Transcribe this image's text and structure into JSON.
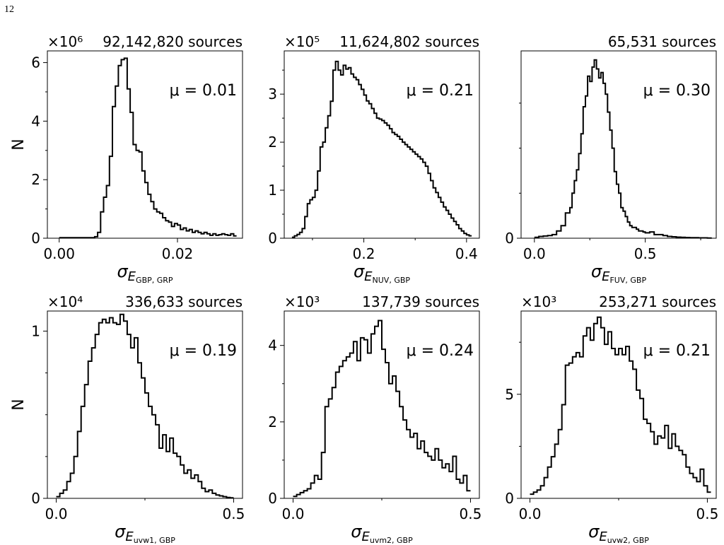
{
  "page_number": "12",
  "chart_data": [
    {
      "type": "histogram",
      "title": "92,142,820 sources",
      "multiplier": "×10⁶",
      "mu_label": "μ = 0.01",
      "ylabel": "N",
      "xlabel": "σ_E(G_BP, G_RP)",
      "xlim": [
        -0.002,
        0.031
      ],
      "ylim": [
        0,
        6.4
      ],
      "xticks": [
        {
          "v": 0.0,
          "label": "0.00"
        },
        {
          "v": 0.02,
          "label": "0.02"
        }
      ],
      "yticks": [
        {
          "v": 0,
          "label": "0"
        },
        {
          "v": 2,
          "label": "2"
        },
        {
          "v": 4,
          "label": "4"
        },
        {
          "v": 6,
          "label": "6"
        }
      ],
      "yminor": [
        1,
        3,
        5
      ],
      "xminor": [],
      "bins": [
        0.0,
        0.002,
        0.004,
        0.006,
        0.0065,
        0.007,
        0.0075,
        0.008,
        0.0085,
        0.009,
        0.0095,
        0.01,
        0.0105,
        0.011,
        0.0115,
        0.012,
        0.0125,
        0.013,
        0.0135,
        0.014,
        0.0145,
        0.015,
        0.0155,
        0.016,
        0.0165,
        0.017,
        0.0175,
        0.018,
        0.0185,
        0.019,
        0.0195,
        0.02,
        0.0205,
        0.021,
        0.0215,
        0.022,
        0.0225,
        0.023,
        0.0235,
        0.024,
        0.0245,
        0.025,
        0.0255,
        0.026,
        0.0265,
        0.027,
        0.0275,
        0.028,
        0.0285,
        0.029,
        0.0295,
        0.03
      ],
      "counts": [
        0.02,
        0.02,
        0.02,
        0.05,
        0.2,
        0.9,
        1.4,
        1.8,
        2.8,
        4.5,
        5.2,
        5.9,
        6.1,
        6.15,
        5.1,
        4.3,
        3.2,
        3.0,
        2.95,
        2.3,
        1.9,
        1.5,
        1.25,
        1.0,
        0.9,
        0.85,
        0.7,
        0.6,
        0.55,
        0.4,
        0.5,
        0.45,
        0.3,
        0.35,
        0.25,
        0.3,
        0.2,
        0.25,
        0.2,
        0.15,
        0.2,
        0.15,
        0.1,
        0.15,
        0.1,
        0.12,
        0.15,
        0.12,
        0.1,
        0.15,
        0.08
      ]
    },
    {
      "type": "histogram",
      "title": "11,624,802 sources",
      "multiplier": "×10⁵",
      "mu_label": "μ = 0.21",
      "ylabel": "",
      "xlabel": "σ_E(NUV, G_BP)",
      "xlim": [
        0.045,
        0.425
      ],
      "ylim": [
        0,
        3.9
      ],
      "xticks": [
        {
          "v": 0.2,
          "label": "0.2"
        },
        {
          "v": 0.4,
          "label": "0.4"
        }
      ],
      "yticks": [
        {
          "v": 0,
          "label": "0"
        },
        {
          "v": 1,
          "label": "1"
        },
        {
          "v": 2,
          "label": "2"
        },
        {
          "v": 3,
          "label": "3"
        }
      ],
      "yminor": [
        0.5,
        1.5,
        2.5,
        3.5
      ],
      "xminor": [
        0.1,
        0.3
      ],
      "bins": [
        0.06,
        0.065,
        0.07,
        0.075,
        0.08,
        0.085,
        0.09,
        0.095,
        0.1,
        0.105,
        0.11,
        0.115,
        0.12,
        0.125,
        0.13,
        0.135,
        0.14,
        0.145,
        0.15,
        0.155,
        0.16,
        0.165,
        0.17,
        0.175,
        0.18,
        0.185,
        0.19,
        0.195,
        0.2,
        0.205,
        0.21,
        0.215,
        0.22,
        0.225,
        0.23,
        0.235,
        0.24,
        0.245,
        0.25,
        0.255,
        0.26,
        0.265,
        0.27,
        0.275,
        0.28,
        0.285,
        0.29,
        0.295,
        0.3,
        0.305,
        0.31,
        0.315,
        0.32,
        0.325,
        0.33,
        0.335,
        0.34,
        0.345,
        0.35,
        0.355,
        0.36,
        0.365,
        0.37,
        0.375,
        0.38,
        0.385,
        0.39,
        0.395,
        0.4,
        0.405
      ],
      "counts": [
        0.02,
        0.05,
        0.08,
        0.12,
        0.2,
        0.45,
        0.72,
        0.8,
        0.85,
        1.0,
        1.4,
        1.9,
        2.0,
        2.3,
        2.55,
        2.85,
        3.5,
        3.68,
        3.5,
        3.4,
        3.6,
        3.52,
        3.55,
        3.42,
        3.35,
        3.3,
        3.2,
        3.1,
        2.98,
        2.86,
        2.8,
        2.7,
        2.6,
        2.5,
        2.48,
        2.45,
        2.4,
        2.35,
        2.28,
        2.2,
        2.16,
        2.12,
        2.06,
        2.0,
        1.95,
        1.9,
        1.85,
        1.8,
        1.75,
        1.7,
        1.65,
        1.58,
        1.5,
        1.35,
        1.2,
        1.05,
        0.95,
        0.85,
        0.75,
        0.65,
        0.58,
        0.5,
        0.42,
        0.35,
        0.28,
        0.2,
        0.15,
        0.1,
        0.07,
        0.05
      ]
    },
    {
      "type": "histogram",
      "title": "65,531 sources",
      "multiplier": "",
      "mu_label": "μ = 0.30",
      "ylabel": "",
      "xlabel": "σ_E(FUV, G_BP)",
      "xlim": [
        -0.06,
        0.82
      ],
      "ylim": [
        0,
        1.04
      ],
      "xticks": [
        {
          "v": 0.0,
          "label": "0.0"
        },
        {
          "v": 0.5,
          "label": "0.5"
        }
      ],
      "yticks": [
        {
          "v": 0,
          "label": "0"
        }
      ],
      "yminor": [
        0.25,
        0.5,
        0.75
      ],
      "xminor": [
        0.25,
        0.75
      ],
      "bins": [
        0.0,
        0.02,
        0.04,
        0.06,
        0.08,
        0.1,
        0.12,
        0.14,
        0.16,
        0.17,
        0.18,
        0.19,
        0.2,
        0.21,
        0.22,
        0.23,
        0.24,
        0.25,
        0.26,
        0.27,
        0.28,
        0.29,
        0.3,
        0.31,
        0.32,
        0.33,
        0.34,
        0.35,
        0.36,
        0.37,
        0.38,
        0.39,
        0.4,
        0.41,
        0.42,
        0.43,
        0.44,
        0.45,
        0.46,
        0.47,
        0.48,
        0.49,
        0.5,
        0.52,
        0.54,
        0.56,
        0.58,
        0.6,
        0.62,
        0.64,
        0.66,
        0.68,
        0.7,
        0.72,
        0.74,
        0.76,
        0.78
      ],
      "counts": [
        0.005,
        0.01,
        0.012,
        0.015,
        0.02,
        0.04,
        0.07,
        0.14,
        0.17,
        0.25,
        0.32,
        0.38,
        0.47,
        0.58,
        0.73,
        0.79,
        0.9,
        0.87,
        0.95,
        0.99,
        0.94,
        0.89,
        0.92,
        0.86,
        0.8,
        0.7,
        0.6,
        0.5,
        0.37,
        0.3,
        0.25,
        0.17,
        0.15,
        0.12,
        0.09,
        0.07,
        0.06,
        0.06,
        0.05,
        0.04,
        0.04,
        0.035,
        0.03,
        0.035,
        0.02,
        0.02,
        0.015,
        0.01,
        0.008,
        0.006,
        0.005,
        0.004,
        0.003,
        0.003,
        0.002,
        0.002,
        0.001
      ]
    },
    {
      "type": "histogram",
      "title": "336,633 sources",
      "multiplier": "×10⁴",
      "mu_label": "μ = 0.19",
      "ylabel": "N",
      "xlabel": "σ_E(uvw1, G_BP)",
      "xlim": [
        -0.025,
        0.525
      ],
      "ylim": [
        0,
        1.12
      ],
      "xticks": [
        {
          "v": 0.0,
          "label": "0.0"
        },
        {
          "v": 0.5,
          "label": "0.5"
        }
      ],
      "yticks": [
        {
          "v": 0,
          "label": "0"
        },
        {
          "v": 1,
          "label": "1"
        }
      ],
      "yminor": [
        0.25,
        0.5,
        0.75
      ],
      "xminor": [
        0.25
      ],
      "bins": [
        0.0,
        0.01,
        0.02,
        0.03,
        0.04,
        0.05,
        0.06,
        0.07,
        0.08,
        0.09,
        0.1,
        0.11,
        0.12,
        0.13,
        0.14,
        0.15,
        0.16,
        0.17,
        0.18,
        0.19,
        0.2,
        0.21,
        0.22,
        0.23,
        0.24,
        0.25,
        0.26,
        0.27,
        0.28,
        0.29,
        0.3,
        0.31,
        0.32,
        0.33,
        0.34,
        0.35,
        0.36,
        0.37,
        0.38,
        0.39,
        0.4,
        0.41,
        0.42,
        0.43,
        0.44,
        0.45,
        0.46,
        0.47,
        0.48,
        0.49
      ],
      "counts": [
        0.01,
        0.03,
        0.05,
        0.1,
        0.15,
        0.25,
        0.4,
        0.55,
        0.68,
        0.82,
        0.9,
        0.98,
        1.05,
        1.07,
        1.05,
        1.08,
        1.05,
        1.04,
        1.1,
        1.06,
        0.98,
        0.9,
        0.96,
        0.81,
        0.72,
        0.63,
        0.55,
        0.5,
        0.44,
        0.3,
        0.38,
        0.28,
        0.36,
        0.27,
        0.25,
        0.2,
        0.15,
        0.17,
        0.12,
        0.14,
        0.1,
        0.06,
        0.04,
        0.05,
        0.03,
        0.02,
        0.015,
        0.01,
        0.005,
        0.003
      ]
    },
    {
      "type": "histogram",
      "title": "137,739 sources",
      "multiplier": "×10³",
      "mu_label": "μ = 0.24",
      "ylabel": "",
      "xlabel": "σ_E(uvm2, G_BP)",
      "xlim": [
        -0.025,
        0.525
      ],
      "ylim": [
        0,
        4.9
      ],
      "xticks": [
        {
          "v": 0.0,
          "label": "0.0"
        },
        {
          "v": 0.5,
          "label": "0.5"
        }
      ],
      "yticks": [
        {
          "v": 0,
          "label": "0"
        },
        {
          "v": 2,
          "label": "2"
        },
        {
          "v": 4,
          "label": "4"
        }
      ],
      "yminor": [
        1,
        3
      ],
      "xminor": [
        0.25
      ],
      "bins": [
        0.0,
        0.01,
        0.02,
        0.03,
        0.04,
        0.05,
        0.06,
        0.07,
        0.08,
        0.09,
        0.1,
        0.11,
        0.12,
        0.13,
        0.14,
        0.15,
        0.16,
        0.17,
        0.18,
        0.19,
        0.2,
        0.21,
        0.22,
        0.23,
        0.24,
        0.25,
        0.26,
        0.27,
        0.28,
        0.29,
        0.3,
        0.31,
        0.32,
        0.33,
        0.34,
        0.35,
        0.36,
        0.37,
        0.38,
        0.39,
        0.4,
        0.41,
        0.42,
        0.43,
        0.44,
        0.45,
        0.46,
        0.47,
        0.48,
        0.49
      ],
      "counts": [
        0.05,
        0.1,
        0.15,
        0.2,
        0.25,
        0.4,
        0.6,
        0.5,
        1.2,
        2.4,
        2.6,
        2.9,
        3.3,
        3.45,
        3.6,
        3.7,
        3.8,
        4.1,
        3.6,
        4.2,
        4.15,
        3.8,
        4.3,
        4.5,
        4.65,
        3.9,
        3.55,
        3.0,
        3.2,
        2.8,
        2.4,
        2.05,
        1.8,
        1.6,
        1.7,
        1.3,
        1.5,
        1.2,
        1.1,
        1.0,
        1.3,
        1.0,
        0.8,
        0.9,
        0.7,
        1.1,
        0.5,
        0.4,
        0.6,
        0.2
      ]
    },
    {
      "type": "histogram",
      "title": "253,271 sources",
      "multiplier": "×10³",
      "mu_label": "μ = 0.21",
      "ylabel": "",
      "xlabel": "σ_E(uvw2, G_BP)",
      "xlim": [
        -0.025,
        0.525
      ],
      "ylim": [
        0,
        9.0
      ],
      "xticks": [
        {
          "v": 0.0,
          "label": "0.0"
        },
        {
          "v": 0.5,
          "label": "0.5"
        }
      ],
      "yticks": [
        {
          "v": 0,
          "label": "0"
        },
        {
          "v": 5,
          "label": "5"
        }
      ],
      "yminor": [
        2.5,
        7.5
      ],
      "xminor": [
        0.25
      ],
      "bins": [
        0.0,
        0.01,
        0.02,
        0.03,
        0.04,
        0.05,
        0.06,
        0.07,
        0.08,
        0.09,
        0.1,
        0.11,
        0.12,
        0.13,
        0.14,
        0.15,
        0.16,
        0.17,
        0.18,
        0.19,
        0.2,
        0.21,
        0.22,
        0.23,
        0.24,
        0.25,
        0.26,
        0.27,
        0.28,
        0.29,
        0.3,
        0.31,
        0.32,
        0.33,
        0.34,
        0.35,
        0.36,
        0.37,
        0.38,
        0.39,
        0.4,
        0.41,
        0.42,
        0.43,
        0.44,
        0.45,
        0.46,
        0.47,
        0.48,
        0.49,
        0.5
      ],
      "counts": [
        0.2,
        0.3,
        0.4,
        0.6,
        1.0,
        1.5,
        2.0,
        2.6,
        3.3,
        4.5,
        6.4,
        6.5,
        6.8,
        7.0,
        6.8,
        7.8,
        8.2,
        7.6,
        8.4,
        8.7,
        8.2,
        7.4,
        8.0,
        7.2,
        6.9,
        7.2,
        6.9,
        7.3,
        6.6,
        6.2,
        5.2,
        4.8,
        3.8,
        3.6,
        3.2,
        2.6,
        3.0,
        2.9,
        3.5,
        2.4,
        3.1,
        2.5,
        2.3,
        2.1,
        1.5,
        1.2,
        1.0,
        0.8,
        1.4,
        0.6,
        0.3
      ]
    }
  ]
}
